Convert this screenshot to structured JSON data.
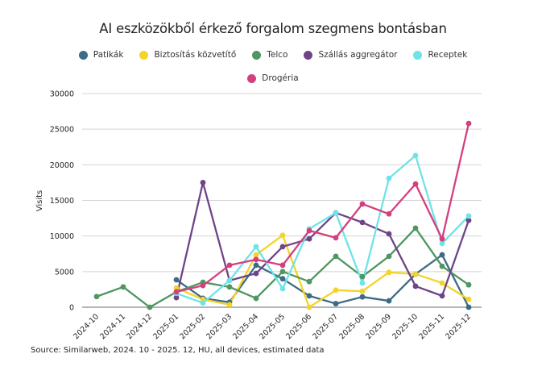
{
  "chart_data": {
    "type": "line",
    "title": "AI eszközökből érkező forgalom szegmens bontásban",
    "xlabel": "",
    "ylabel": "Visits",
    "ylim": [
      0,
      30000
    ],
    "yticks": [
      0,
      5000,
      10000,
      15000,
      20000,
      25000,
      30000
    ],
    "grid": true,
    "legend_position": "top",
    "categories": [
      "2024-10",
      "2024-11",
      "2024-12",
      "2025-01",
      "2025-02",
      "2025-03",
      "2025-04",
      "2025-05",
      "2025-06",
      "2025-07",
      "2025-08",
      "2025-09",
      "2025-10",
      "2025-11",
      "2025-12"
    ],
    "series": [
      {
        "name": "Patikák",
        "color": "#3d6b85",
        "values": [
          null,
          null,
          null,
          3850,
          1250,
          700,
          5900,
          4000,
          1600,
          500,
          1450,
          900,
          4650,
          7350,
          0
        ]
      },
      {
        "name": "Biztosítás közvetítő",
        "color": "#f5d328",
        "values": [
          null,
          null,
          null,
          2700,
          1100,
          350,
          7350,
          10100,
          0,
          2400,
          2250,
          4900,
          4650,
          3400,
          1100
        ]
      },
      {
        "name": "Telco",
        "color": "#4f9660",
        "values": [
          1500,
          2850,
          0,
          2150,
          3500,
          2850,
          1250,
          5000,
          3600,
          7150,
          4300,
          7150,
          11100,
          5750,
          3150
        ]
      },
      {
        "name": "Szállás aggregátor",
        "color": "#6e4488",
        "values": [
          null,
          null,
          null,
          1350,
          17500,
          3750,
          4750,
          8500,
          9600,
          13250,
          11900,
          10300,
          2950,
          1600,
          12200
        ]
      },
      {
        "name": "Receptek",
        "color": "#6ee3e8",
        "values": [
          null,
          null,
          null,
          1950,
          600,
          3750,
          8500,
          2600,
          11000,
          13250,
          3400,
          18100,
          21300,
          8950,
          12800
        ]
      },
      {
        "name": "Drogéria",
        "color": "#d43f7e",
        "values": [
          null,
          null,
          null,
          2150,
          3050,
          5900,
          6700,
          5900,
          10750,
          9750,
          14500,
          13100,
          17300,
          9600,
          25800
        ]
      }
    ],
    "source": "Source: Similarweb, 2024. 10 - 2025. 12, HU, all devices, estimated data"
  }
}
